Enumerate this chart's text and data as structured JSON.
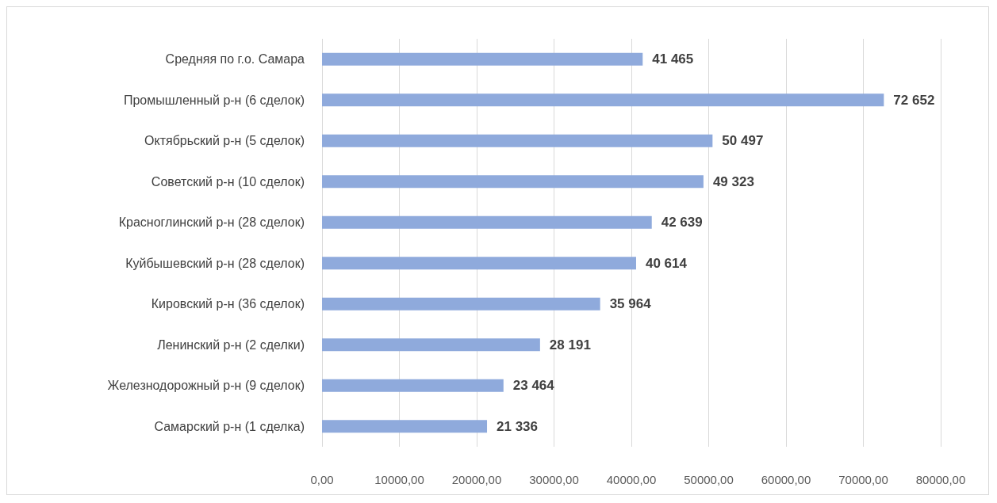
{
  "chart_data": {
    "type": "bar",
    "orientation": "horizontal",
    "categories": [
      "Средняя по г.о. Самара",
      "Промышленный р-н (6 сделок)",
      "Октябрьский р-н (5 сделок)",
      "Советский р-н (10 сделок)",
      "Красноглинский р-н (28 сделок)",
      "Куйбышевский р-н (28 сделок)",
      "Кировский р-н (36 сделок)",
      "Ленинский р-н (2 сделки)",
      "Железнодорожный р-н (9 сделок)",
      "Самарский р-н (1 сделка)"
    ],
    "values": [
      41465,
      72652,
      50497,
      49323,
      42639,
      40614,
      35964,
      28191,
      23464,
      21336
    ],
    "value_labels": [
      "41 465",
      "72 652",
      "50 497",
      "49 323",
      "42 639",
      "40 614",
      "35 964",
      "28 191",
      "23 464",
      "21 336"
    ],
    "color": "#8faadc",
    "xlim": [
      0,
      80000
    ],
    "xticks": [
      {
        "value": 0,
        "label": "0,00"
      },
      {
        "value": 10000,
        "label": "10000,00"
      },
      {
        "value": 20000,
        "label": "20000,00"
      },
      {
        "value": 30000,
        "label": "30000,00"
      },
      {
        "value": 40000,
        "label": "40000,00"
      },
      {
        "value": 50000,
        "label": "50000,00"
      },
      {
        "value": 60000,
        "label": "60000,00"
      },
      {
        "value": 70000,
        "label": "70000,00"
      },
      {
        "value": 80000,
        "label": "80000,00"
      }
    ],
    "grid": "x"
  }
}
